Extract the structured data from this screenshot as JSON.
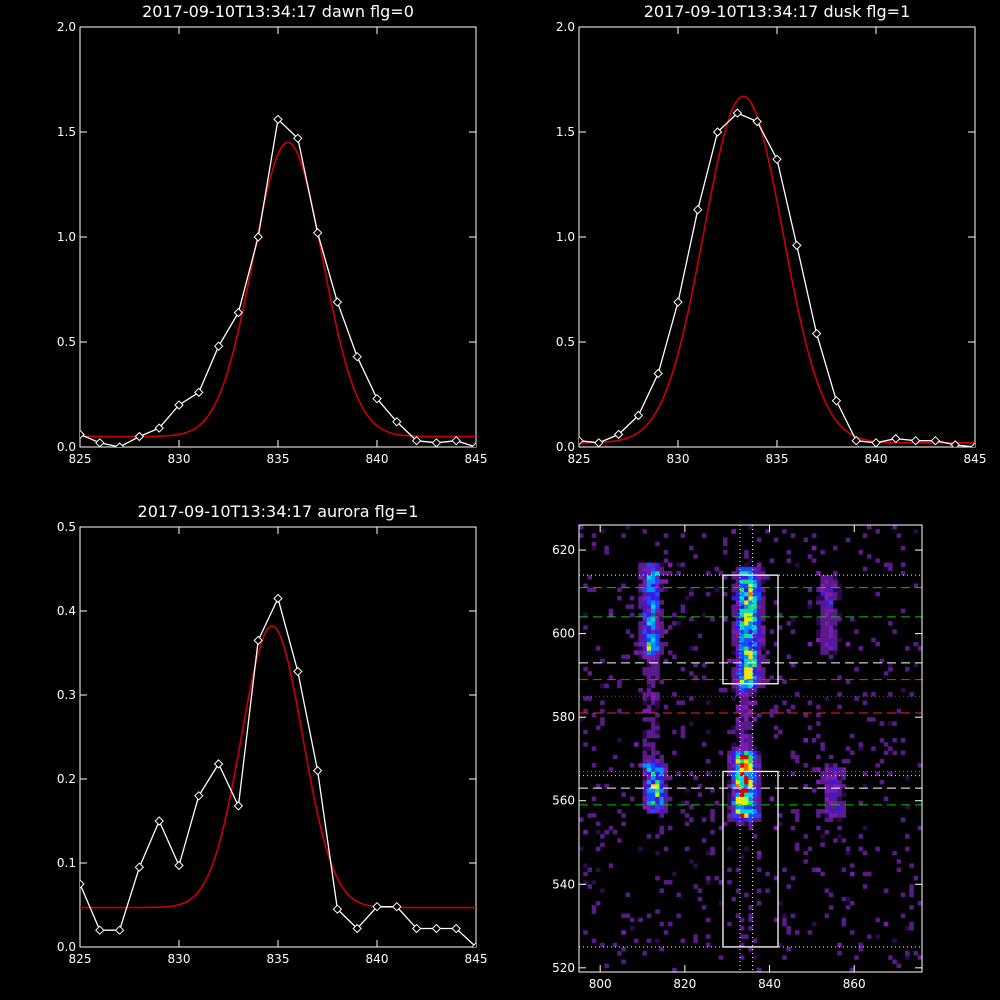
{
  "chart_data": [
    {
      "type": "line",
      "title": "2017-09-10T13:34:17 dawn flg=0",
      "xlim": [
        825,
        845
      ],
      "ylim": [
        0,
        2.0
      ],
      "xticks": [
        825,
        830,
        835,
        840,
        845
      ],
      "yticks": [
        0.0,
        0.5,
        1.0,
        1.5,
        2.0
      ],
      "ytick_labels": [
        "0.0",
        "0.5",
        "1.0",
        "1.5",
        "2.0"
      ],
      "series": [
        {
          "style": "white line with diamond markers",
          "color": "#ffffff",
          "x": [
            825,
            826,
            827,
            828,
            829,
            830,
            831,
            832,
            833,
            834,
            835,
            836,
            837,
            838,
            839,
            840,
            841,
            842,
            843,
            844,
            845
          ],
          "y": [
            0.06,
            0.02,
            0.0,
            0.05,
            0.09,
            0.2,
            0.26,
            0.48,
            0.64,
            1.0,
            1.56,
            1.47,
            1.02,
            0.69,
            0.43,
            0.23,
            0.12,
            0.03,
            0.02,
            0.03,
            0.0
          ]
        },
        {
          "style": "red gaussian fit",
          "color": "#cc0000",
          "fit": {
            "baseline": 0.05,
            "amplitude": 1.4,
            "center": 835.5,
            "sigma": 1.75
          }
        }
      ]
    },
    {
      "type": "line",
      "title": "2017-09-10T13:34:17 dusk flg=1",
      "xlim": [
        825,
        845
      ],
      "ylim": [
        0,
        2.0
      ],
      "xticks": [
        825,
        830,
        835,
        840,
        845
      ],
      "yticks": [
        0.0,
        0.5,
        1.0,
        1.5,
        2.0
      ],
      "ytick_labels": [
        "0.0",
        "0.5",
        "1.0",
        "1.5",
        "2.0"
      ],
      "series": [
        {
          "style": "white line with diamond markers",
          "color": "#ffffff",
          "x": [
            825,
            826,
            827,
            828,
            829,
            830,
            831,
            832,
            833,
            834,
            835,
            836,
            837,
            838,
            839,
            840,
            841,
            842,
            843,
            844,
            845
          ],
          "y": [
            0.03,
            0.02,
            0.06,
            0.15,
            0.35,
            0.69,
            1.13,
            1.5,
            1.59,
            1.55,
            1.37,
            0.96,
            0.54,
            0.22,
            0.03,
            0.02,
            0.04,
            0.03,
            0.03,
            0.01,
            0.0
          ]
        },
        {
          "style": "red gaussian fit",
          "color": "#cc0000",
          "fit": {
            "baseline": 0.02,
            "amplitude": 1.65,
            "center": 833.3,
            "sigma": 2.0
          }
        }
      ]
    },
    {
      "type": "line",
      "title": "2017-09-10T13:34:17 aurora flg=1",
      "xlim": [
        825,
        845
      ],
      "ylim": [
        0,
        0.5
      ],
      "xticks": [
        825,
        830,
        835,
        840,
        845
      ],
      "yticks": [
        0.0,
        0.1,
        0.2,
        0.3,
        0.4,
        0.5
      ],
      "ytick_labels": [
        "0.0",
        "0.1",
        "0.2",
        "0.3",
        "0.4",
        "0.5"
      ],
      "series": [
        {
          "style": "white line with diamond markers",
          "color": "#ffffff",
          "x": [
            825,
            826,
            827,
            828,
            829,
            830,
            831,
            832,
            833,
            834,
            835,
            836,
            837,
            838,
            839,
            840,
            841,
            842,
            843,
            844,
            845
          ],
          "y": [
            0.075,
            0.02,
            0.02,
            0.095,
            0.15,
            0.097,
            0.18,
            0.218,
            0.168,
            0.365,
            0.415,
            0.328,
            0.21,
            0.045,
            0.022,
            0.048,
            0.048,
            0.022,
            0.022,
            0.022,
            0.0
          ]
        },
        {
          "style": "red gaussian fit",
          "color": "#cc0000",
          "fit": {
            "baseline": 0.047,
            "amplitude": 0.335,
            "center": 834.7,
            "sigma": 1.55
          }
        }
      ]
    },
    {
      "type": "heatmap",
      "title": "",
      "xlim": [
        795,
        876
      ],
      "ylim": [
        519,
        626
      ],
      "xticks": [
        800,
        820,
        840,
        860
      ],
      "yticks": [
        520,
        540,
        560,
        580,
        600,
        620
      ],
      "colormap": [
        "#2a0a4a",
        "#5a1a8a",
        "#7a1ab0",
        "#3a1ae0",
        "#1a4aff",
        "#0090ff",
        "#00d8e0",
        "#20e070",
        "#c0ff20",
        "#ffe000",
        "#ff6000",
        "#e00000"
      ],
      "sources": [
        {
          "x": 812,
          "x_spread": 2.2,
          "y_from": 596,
          "y_to": 615,
          "strength": 0.45
        },
        {
          "x": 813,
          "x_spread": 2.2,
          "y_from": 558,
          "y_to": 567,
          "strength": 0.6
        },
        {
          "x": 812,
          "x_spread": 2.5,
          "y_from": 568,
          "y_to": 596,
          "strength": 0.12
        },
        {
          "x": 835,
          "x_spread": 2.6,
          "y_from": 588,
          "y_to": 614,
          "strength": 0.65
        },
        {
          "x": 834,
          "x_spread": 2.6,
          "y_from": 556,
          "y_to": 570,
          "strength": 0.8
        },
        {
          "x": 834,
          "x_spread": 2.5,
          "y_from": 570,
          "y_to": 588,
          "strength": 0.15
        },
        {
          "x": 854,
          "x_spread": 2.5,
          "y_from": 596,
          "y_to": 613,
          "strength": 0.18
        },
        {
          "x": 855,
          "x_spread": 2.5,
          "y_from": 556,
          "y_to": 567,
          "strength": 0.22
        }
      ],
      "hot_spot": {
        "x": 834,
        "y": 565
      },
      "background_density": 0.09,
      "boxes": [
        {
          "x0": 829,
          "x1": 842,
          "y0": 588,
          "y1": 614,
          "color": "#ffffff"
        },
        {
          "x0": 829,
          "x1": 842,
          "y0": 525,
          "y1": 567,
          "color": "#ffffff"
        }
      ],
      "hlines": [
        {
          "y": 614,
          "style": "dotted",
          "color": "#ffffff"
        },
        {
          "y": 611,
          "style": "dashed",
          "color": "#00c800"
        },
        {
          "y": 604,
          "style": "dashed",
          "color": "#00c800"
        },
        {
          "y": 593,
          "style": "dashed",
          "color": "#ffffff"
        },
        {
          "y": 589,
          "style": "dashed",
          "color": "#ff2020"
        },
        {
          "y": 585,
          "style": "dotted",
          "color": "#ff2020"
        },
        {
          "y": 581,
          "style": "dashed",
          "color": "#ff2020"
        },
        {
          "y": 567,
          "style": "dotted",
          "color": "#00c800"
        },
        {
          "y": 566,
          "style": "dotted",
          "color": "#ffffff"
        },
        {
          "y": 563,
          "style": "dashed",
          "color": "#ffffff"
        },
        {
          "y": 559,
          "style": "dashed",
          "color": "#00c800"
        },
        {
          "y": 525,
          "style": "dotted",
          "color": "#ffffff"
        }
      ],
      "vlines": [
        {
          "x": 833,
          "style": "dotted",
          "color": "#ffffff"
        },
        {
          "x": 836,
          "style": "dotted",
          "color": "#ffffff"
        }
      ]
    }
  ]
}
